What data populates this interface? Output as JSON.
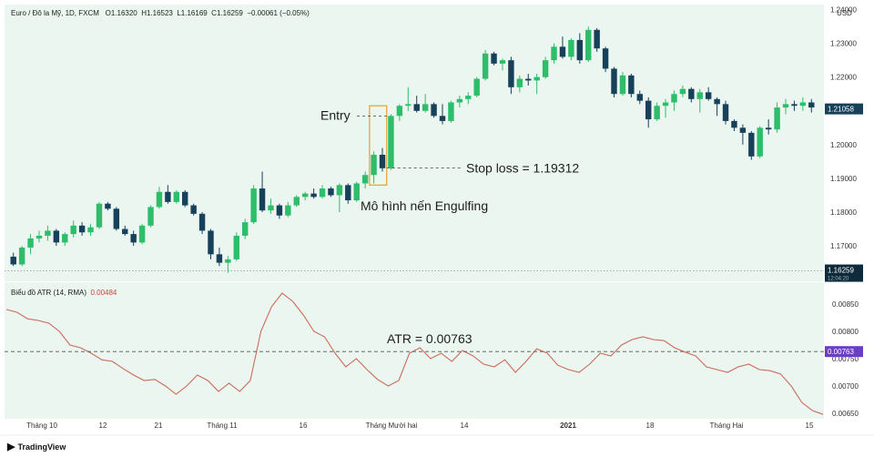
{
  "legend": {
    "title": "Euro / Đô la Mỹ, 1D, FXCM",
    "open": "O1.16320",
    "high": "H1.16523",
    "low": "L1.16169",
    "close": "C1.16259",
    "change": "−0.00061 (−0.05%)"
  },
  "atr_legend": {
    "name": "Biểu đồ ATR (14, RMA)",
    "value": "0.00484"
  },
  "price_axis": {
    "currency": "USD",
    "last_price_label": "1.21058",
    "current_price_label": "1.16259",
    "countdown": "12:04:20"
  },
  "atr_axis": {
    "current_label": "0.00763"
  },
  "annotations": {
    "entry": "Entry",
    "stop_loss": "Stop loss = 1.19312",
    "pattern": "Mô hình nến Engulfing",
    "atr": "ATR = 0.00763"
  },
  "brand": "TradingView",
  "colors": {
    "up": "#2ebd6b",
    "down": "#17405a",
    "atr_line": "#cc6a5a",
    "pattern_box": "#e3a83b",
    "atr_marker": "#6a3fc4",
    "last_price_tag": "#17405a"
  },
  "chart_data": [
    {
      "type": "candlestick",
      "symbol": "EUR/USD",
      "timeframe": "1D",
      "y_ticks": [
        "1.24000",
        "1.23000",
        "1.22000",
        "1.21000",
        "1.20000",
        "1.19000",
        "1.18000",
        "1.17000"
      ],
      "x_ticks": [
        "Tháng 10",
        "12",
        "21",
        "Tháng 11",
        "16",
        "Tháng Mười hai",
        "14",
        "2021",
        "18",
        "Tháng Hai",
        "15"
      ],
      "ylim": [
        1.1595,
        1.2415
      ],
      "candles": [
        [
          1.1668,
          1.168,
          1.164,
          1.1645
        ],
        [
          1.1645,
          1.17,
          1.164,
          1.1695
        ],
        [
          1.1695,
          1.1735,
          1.1675,
          1.1722
        ],
        [
          1.1722,
          1.1745,
          1.171,
          1.173
        ],
        [
          1.173,
          1.176,
          1.1715,
          1.1745
        ],
        [
          1.1745,
          1.175,
          1.17,
          1.171
        ],
        [
          1.171,
          1.174,
          1.17,
          1.1735
        ],
        [
          1.1735,
          1.1775,
          1.1725,
          1.176
        ],
        [
          1.176,
          1.177,
          1.173,
          1.174
        ],
        [
          1.174,
          1.1765,
          1.173,
          1.1755
        ],
        [
          1.1755,
          1.183,
          1.175,
          1.1825
        ],
        [
          1.1825,
          1.183,
          1.1805,
          1.181
        ],
        [
          1.181,
          1.1815,
          1.1745,
          1.175
        ],
        [
          1.175,
          1.176,
          1.173,
          1.1735
        ],
        [
          1.1735,
          1.1745,
          1.17,
          1.171
        ],
        [
          1.171,
          1.1765,
          1.1705,
          1.176
        ],
        [
          1.176,
          1.182,
          1.1755,
          1.1815
        ],
        [
          1.1815,
          1.1875,
          1.181,
          1.186
        ],
        [
          1.186,
          1.188,
          1.1825,
          1.183
        ],
        [
          1.183,
          1.1865,
          1.1825,
          1.186
        ],
        [
          1.186,
          1.1865,
          1.1815,
          1.182
        ],
        [
          1.182,
          1.1825,
          1.179,
          1.1795
        ],
        [
          1.1795,
          1.18,
          1.1735,
          1.1745
        ],
        [
          1.1745,
          1.175,
          1.166,
          1.1675
        ],
        [
          1.1675,
          1.1695,
          1.164,
          1.165
        ],
        [
          1.165,
          1.167,
          1.162,
          1.166
        ],
        [
          1.166,
          1.174,
          1.1655,
          1.173
        ],
        [
          1.173,
          1.178,
          1.172,
          1.177
        ],
        [
          1.177,
          1.188,
          1.1765,
          1.187
        ],
        [
          1.187,
          1.192,
          1.18,
          1.1805
        ],
        [
          1.1805,
          1.184,
          1.1795,
          1.182
        ],
        [
          1.182,
          1.1825,
          1.178,
          1.179
        ],
        [
          1.179,
          1.183,
          1.1785,
          1.182
        ],
        [
          1.182,
          1.185,
          1.1815,
          1.1845
        ],
        [
          1.1845,
          1.186,
          1.1835,
          1.1855
        ],
        [
          1.1855,
          1.187,
          1.184,
          1.1845
        ],
        [
          1.1845,
          1.188,
          1.184,
          1.187
        ],
        [
          1.187,
          1.1875,
          1.1845,
          1.185
        ],
        [
          1.185,
          1.1885,
          1.18,
          1.188
        ],
        [
          1.188,
          1.1885,
          1.1825,
          1.1835
        ],
        [
          1.1835,
          1.189,
          1.183,
          1.1885
        ],
        [
          1.1885,
          1.192,
          1.187,
          1.191
        ],
        [
          1.191,
          1.198,
          1.1885,
          1.197
        ],
        [
          1.197,
          1.199,
          1.192,
          1.193
        ],
        [
          1.193,
          1.209,
          1.1925,
          1.2085
        ],
        [
          1.2085,
          1.212,
          1.207,
          1.2115
        ],
        [
          1.2115,
          1.217,
          1.21,
          1.212
        ],
        [
          1.212,
          1.2145,
          1.2095,
          1.21
        ],
        [
          1.21,
          1.215,
          1.2095,
          1.212
        ],
        [
          1.212,
          1.2125,
          1.208,
          1.2085
        ],
        [
          1.2085,
          1.212,
          1.206,
          1.207
        ],
        [
          1.207,
          1.213,
          1.2065,
          1.2125
        ],
        [
          1.2125,
          1.2145,
          1.211,
          1.2135
        ],
        [
          1.2135,
          1.2155,
          1.212,
          1.2145
        ],
        [
          1.2145,
          1.22,
          1.214,
          1.2195
        ],
        [
          1.2195,
          1.228,
          1.219,
          1.227
        ],
        [
          1.227,
          1.2275,
          1.2235,
          1.224
        ],
        [
          1.224,
          1.2255,
          1.222,
          1.225
        ],
        [
          1.225,
          1.226,
          1.215,
          1.217
        ],
        [
          1.217,
          1.2205,
          1.2155,
          1.2195
        ],
        [
          1.2195,
          1.221,
          1.2175,
          1.219
        ],
        [
          1.219,
          1.221,
          1.215,
          1.22
        ],
        [
          1.22,
          1.226,
          1.2195,
          1.225
        ],
        [
          1.225,
          1.23,
          1.224,
          1.229
        ],
        [
          1.229,
          1.232,
          1.2255,
          1.226
        ],
        [
          1.226,
          1.2315,
          1.225,
          1.231
        ],
        [
          1.231,
          1.233,
          1.224,
          1.225
        ],
        [
          1.225,
          1.235,
          1.2245,
          1.234
        ],
        [
          1.234,
          1.2345,
          1.2275,
          1.2285
        ],
        [
          1.2285,
          1.229,
          1.2215,
          1.2225
        ],
        [
          1.2225,
          1.223,
          1.214,
          1.215
        ],
        [
          1.215,
          1.2215,
          1.2145,
          1.2205
        ],
        [
          1.2205,
          1.221,
          1.214,
          1.215
        ],
        [
          1.215,
          1.216,
          1.212,
          1.213
        ],
        [
          1.213,
          1.214,
          1.205,
          1.2075
        ],
        [
          1.2075,
          1.2125,
          1.207,
          1.2115
        ],
        [
          1.2115,
          1.2135,
          1.208,
          1.2125
        ],
        [
          1.2125,
          1.216,
          1.21,
          1.215
        ],
        [
          1.215,
          1.2175,
          1.214,
          1.2165
        ],
        [
          1.2165,
          1.217,
          1.2125,
          1.2135
        ],
        [
          1.2135,
          1.2165,
          1.2095,
          1.2155
        ],
        [
          1.2155,
          1.217,
          1.213,
          1.2135
        ],
        [
          1.2135,
          1.214,
          1.2085,
          1.212
        ],
        [
          1.212,
          1.213,
          1.206,
          1.207
        ],
        [
          1.207,
          1.2075,
          1.204,
          1.205
        ],
        [
          1.205,
          1.206,
          1.2,
          1.2035
        ],
        [
          1.2035,
          1.204,
          1.1955,
          1.1965
        ],
        [
          1.1965,
          1.2055,
          1.196,
          1.205
        ],
        [
          1.205,
          1.2075,
          1.203,
          1.2045
        ],
        [
          1.2045,
          1.2125,
          1.2035,
          1.211
        ],
        [
          1.211,
          1.2135,
          1.209,
          1.212
        ],
        [
          1.212,
          1.213,
          1.21,
          1.2115
        ],
        [
          1.2115,
          1.214,
          1.21,
          1.2125
        ],
        [
          1.2125,
          1.2135,
          1.2095,
          1.211
        ]
      ]
    },
    {
      "type": "line",
      "name": "ATR (14, RMA)",
      "y_ticks": [
        "0.00850",
        "0.00800",
        "0.00750",
        "0.00700",
        "0.00650"
      ],
      "ylim": [
        0.0064,
        0.0089
      ],
      "values": [
        0.0084,
        0.00835,
        0.00823,
        0.0082,
        0.00815,
        0.008,
        0.00775,
        0.0077,
        0.0076,
        0.00748,
        0.00745,
        0.00732,
        0.0072,
        0.0071,
        0.00712,
        0.007,
        0.00685,
        0.007,
        0.0072,
        0.0071,
        0.0069,
        0.00705,
        0.0069,
        0.0071,
        0.008,
        0.00845,
        0.0087,
        0.00855,
        0.0083,
        0.008,
        0.0079,
        0.0076,
        0.00735,
        0.0075,
        0.0073,
        0.00712,
        0.007,
        0.0071,
        0.0076,
        0.0077,
        0.0075,
        0.0076,
        0.00745,
        0.00765,
        0.00755,
        0.0074,
        0.00735,
        0.00748,
        0.00725,
        0.00745,
        0.00768,
        0.0076,
        0.00738,
        0.0073,
        0.00725,
        0.0074,
        0.0076,
        0.00755,
        0.00775,
        0.00785,
        0.0079,
        0.00785,
        0.00783,
        0.0077,
        0.00762,
        0.00755,
        0.00735,
        0.0073,
        0.00725,
        0.00735,
        0.0074,
        0.0073,
        0.00728,
        0.00722,
        0.007,
        0.0067,
        0.00655,
        0.00648
      ],
      "current": 0.00763
    }
  ]
}
